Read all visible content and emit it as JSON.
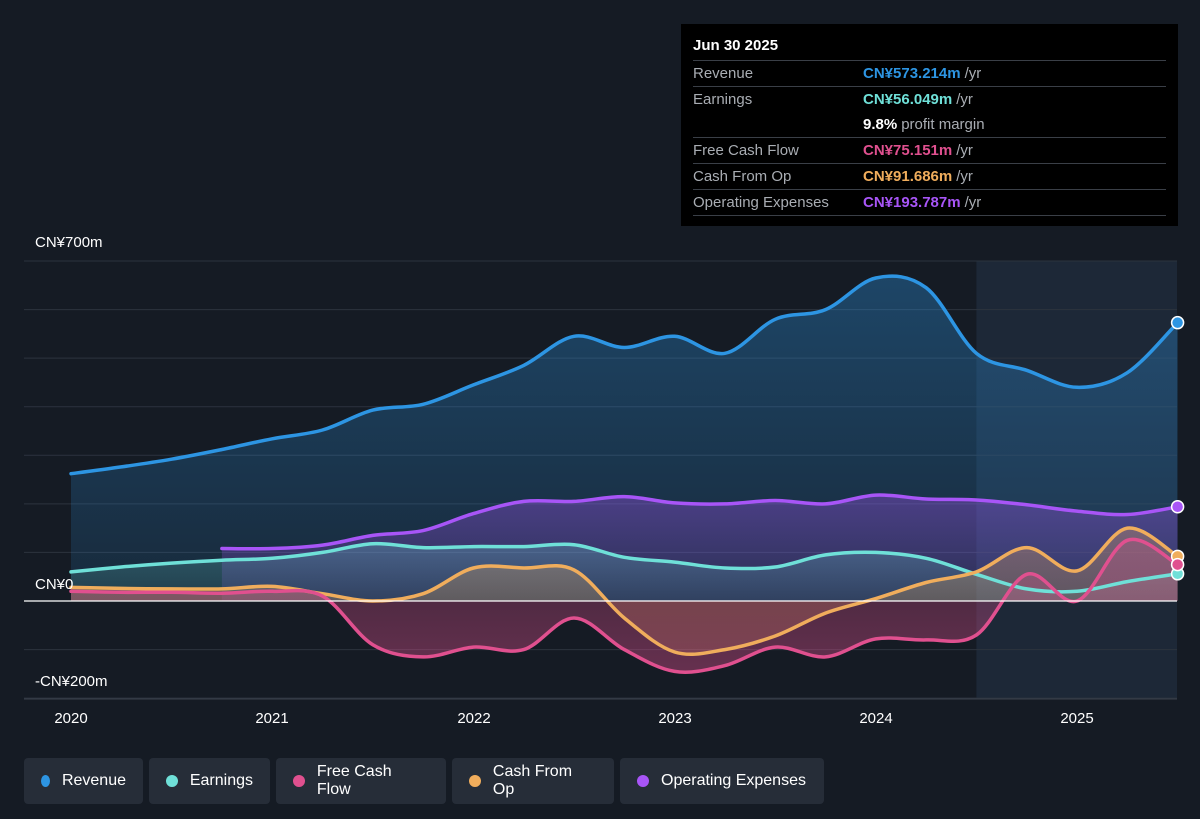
{
  "tooltip": {
    "date": "Jun 30 2025",
    "rows": [
      {
        "label": "Revenue",
        "value": "CN¥573.214m",
        "unit": "/yr",
        "color": "#2d95e3"
      },
      {
        "label": "Earnings",
        "value": "CN¥56.049m",
        "unit": "/yr",
        "color": "#6fe0d8"
      },
      {
        "label": "",
        "value": "9.8%",
        "unit": "profit margin",
        "color": "#ffffff"
      },
      {
        "label": "Free Cash Flow",
        "value": "CN¥75.151m",
        "unit": "/yr",
        "color": "#e0508f"
      },
      {
        "label": "Cash From Op",
        "value": "CN¥91.686m",
        "unit": "/yr",
        "color": "#f0ad5c"
      },
      {
        "label": "Operating Expenses",
        "value": "CN¥193.787m",
        "unit": "/yr",
        "color": "#a855f7"
      }
    ]
  },
  "chart_data": {
    "type": "line",
    "ylim": [
      -200,
      700
    ],
    "y_ticks": [
      {
        "value": 700,
        "label": "CN¥700m"
      },
      {
        "value": 0,
        "label": "CN¥0"
      },
      {
        "value": -200,
        "label": "-CN¥200m"
      }
    ],
    "x_ticks": [
      {
        "value": 2020.0,
        "label": "2020"
      },
      {
        "value": 2021.0,
        "label": "2021"
      },
      {
        "value": 2022.0,
        "label": "2022"
      },
      {
        "value": 2023.0,
        "label": "2023"
      },
      {
        "value": 2024.0,
        "label": "2024"
      },
      {
        "value": 2025.0,
        "label": "2025"
      }
    ],
    "xlim": [
      2019.77,
      2025.5
    ],
    "highlight_from": 2024.5,
    "grid": true,
    "series": [
      {
        "name": "Revenue",
        "color": "#2d95e3",
        "fill": true,
        "points": [
          [
            2020.0,
            262
          ],
          [
            2020.25,
            276
          ],
          [
            2020.5,
            292
          ],
          [
            2020.75,
            312
          ],
          [
            2021.0,
            334
          ],
          [
            2021.25,
            352
          ],
          [
            2021.5,
            393
          ],
          [
            2021.75,
            405
          ],
          [
            2022.0,
            445
          ],
          [
            2022.25,
            485
          ],
          [
            2022.5,
            545
          ],
          [
            2022.75,
            522
          ],
          [
            2023.0,
            545
          ],
          [
            2023.25,
            510
          ],
          [
            2023.5,
            580
          ],
          [
            2023.75,
            600
          ],
          [
            2024.0,
            665
          ],
          [
            2024.25,
            645
          ],
          [
            2024.5,
            510
          ],
          [
            2024.75,
            475
          ],
          [
            2025.0,
            440
          ],
          [
            2025.25,
            470
          ],
          [
            2025.5,
            573
          ]
        ]
      },
      {
        "name": "Operating Expenses",
        "color": "#a855f7",
        "fill": true,
        "points": [
          [
            2020.75,
            108
          ],
          [
            2021.0,
            108
          ],
          [
            2021.25,
            115
          ],
          [
            2021.5,
            135
          ],
          [
            2021.75,
            145
          ],
          [
            2022.0,
            180
          ],
          [
            2022.25,
            205
          ],
          [
            2022.5,
            205
          ],
          [
            2022.75,
            215
          ],
          [
            2023.0,
            202
          ],
          [
            2023.25,
            200
          ],
          [
            2023.5,
            207
          ],
          [
            2023.75,
            200
          ],
          [
            2024.0,
            218
          ],
          [
            2024.25,
            210
          ],
          [
            2024.5,
            208
          ],
          [
            2024.75,
            198
          ],
          [
            2025.0,
            185
          ],
          [
            2025.25,
            178
          ],
          [
            2025.5,
            194
          ]
        ]
      },
      {
        "name": "Earnings",
        "color": "#6fe0d8",
        "fill": true,
        "points": [
          [
            2020.0,
            60
          ],
          [
            2020.25,
            70
          ],
          [
            2020.5,
            78
          ],
          [
            2020.75,
            84
          ],
          [
            2021.0,
            88
          ],
          [
            2021.25,
            100
          ],
          [
            2021.5,
            118
          ],
          [
            2021.75,
            110
          ],
          [
            2022.0,
            112
          ],
          [
            2022.25,
            112
          ],
          [
            2022.5,
            116
          ],
          [
            2022.75,
            90
          ],
          [
            2023.0,
            80
          ],
          [
            2023.25,
            68
          ],
          [
            2023.5,
            70
          ],
          [
            2023.75,
            95
          ],
          [
            2024.0,
            100
          ],
          [
            2024.25,
            88
          ],
          [
            2024.5,
            55
          ],
          [
            2024.75,
            25
          ],
          [
            2025.0,
            20
          ],
          [
            2025.25,
            40
          ],
          [
            2025.5,
            56
          ]
        ]
      },
      {
        "name": "Cash From Op",
        "color": "#f0ad5c",
        "fill": true,
        "points": [
          [
            2020.0,
            28
          ],
          [
            2020.25,
            26
          ],
          [
            2020.5,
            25
          ],
          [
            2020.75,
            25
          ],
          [
            2021.0,
            30
          ],
          [
            2021.25,
            15
          ],
          [
            2021.5,
            0
          ],
          [
            2021.75,
            15
          ],
          [
            2022.0,
            68
          ],
          [
            2022.25,
            68
          ],
          [
            2022.5,
            64
          ],
          [
            2022.75,
            -35
          ],
          [
            2023.0,
            -105
          ],
          [
            2023.25,
            -100
          ],
          [
            2023.5,
            -72
          ],
          [
            2023.75,
            -25
          ],
          [
            2024.0,
            5
          ],
          [
            2024.25,
            38
          ],
          [
            2024.5,
            60
          ],
          [
            2024.75,
            110
          ],
          [
            2025.0,
            62
          ],
          [
            2025.25,
            150
          ],
          [
            2025.5,
            92
          ]
        ]
      },
      {
        "name": "Free Cash Flow",
        "color": "#e0508f",
        "fill": true,
        "points": [
          [
            2020.0,
            20
          ],
          [
            2020.25,
            18
          ],
          [
            2020.5,
            18
          ],
          [
            2020.75,
            16
          ],
          [
            2021.0,
            20
          ],
          [
            2021.25,
            10
          ],
          [
            2021.5,
            -90
          ],
          [
            2021.75,
            -115
          ],
          [
            2022.0,
            -95
          ],
          [
            2022.25,
            -100
          ],
          [
            2022.5,
            -35
          ],
          [
            2022.75,
            -100
          ],
          [
            2023.0,
            -145
          ],
          [
            2023.25,
            -133
          ],
          [
            2023.5,
            -95
          ],
          [
            2023.75,
            -115
          ],
          [
            2024.0,
            -78
          ],
          [
            2024.25,
            -80
          ],
          [
            2024.5,
            -70
          ],
          [
            2024.75,
            55
          ],
          [
            2025.0,
            0
          ],
          [
            2025.25,
            125
          ],
          [
            2025.5,
            75
          ]
        ]
      }
    ]
  },
  "legend": [
    {
      "label": "Revenue",
      "color": "#2d95e3"
    },
    {
      "label": "Earnings",
      "color": "#6fe0d8"
    },
    {
      "label": "Free Cash Flow",
      "color": "#e0508f"
    },
    {
      "label": "Cash From Op",
      "color": "#f0ad5c"
    },
    {
      "label": "Operating Expenses",
      "color": "#a855f7"
    }
  ]
}
